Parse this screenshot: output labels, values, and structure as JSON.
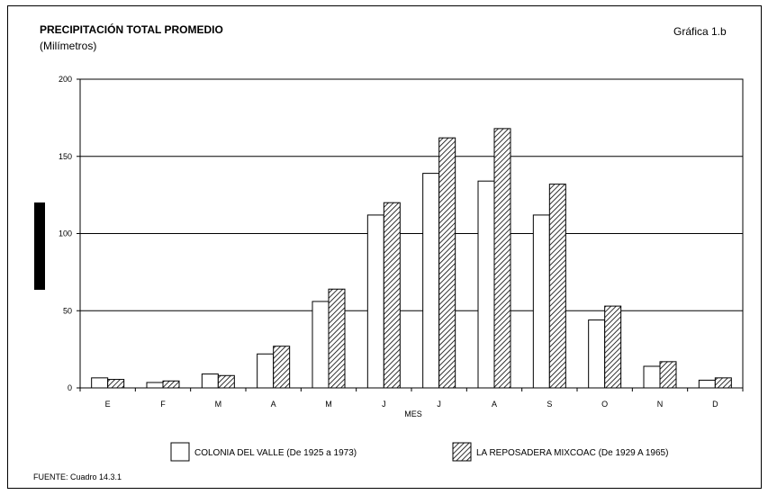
{
  "header": {
    "title": "PRECIPITACIÓN TOTAL PROMEDIO",
    "subtitle": "(Milímetros)",
    "graph_label": "Gráfica 1.b"
  },
  "footer": {
    "source": "FUENTE: Cuadro 14.3.1"
  },
  "chart_data": {
    "type": "bar",
    "title": "PRECIPITACIÓN TOTAL PROMEDIO",
    "subtitle": "(Milímetros)",
    "xlabel": "MES",
    "ylabel": "",
    "categories": [
      "E",
      "F",
      "M",
      "A",
      "M",
      "J",
      "J",
      "A",
      "S",
      "O",
      "N",
      "D"
    ],
    "ylim": [
      0,
      200
    ],
    "yticks": [
      0,
      50,
      100,
      150,
      200
    ],
    "grid": true,
    "legend_position": "bottom",
    "series": [
      {
        "name": "COLONIA DEL VALLE (De 1925 a 1973)",
        "fill": "white",
        "values": [
          6.5,
          3.5,
          9,
          22,
          56,
          112,
          139,
          134,
          112,
          44,
          14,
          5
        ]
      },
      {
        "name": "LA REPOSADERA MIXCOAC (De 1929 A 1965)",
        "fill": "hatched",
        "values": [
          5.5,
          4.5,
          8,
          27,
          64,
          120,
          162,
          168,
          132,
          53,
          17,
          6.5
        ]
      }
    ]
  }
}
